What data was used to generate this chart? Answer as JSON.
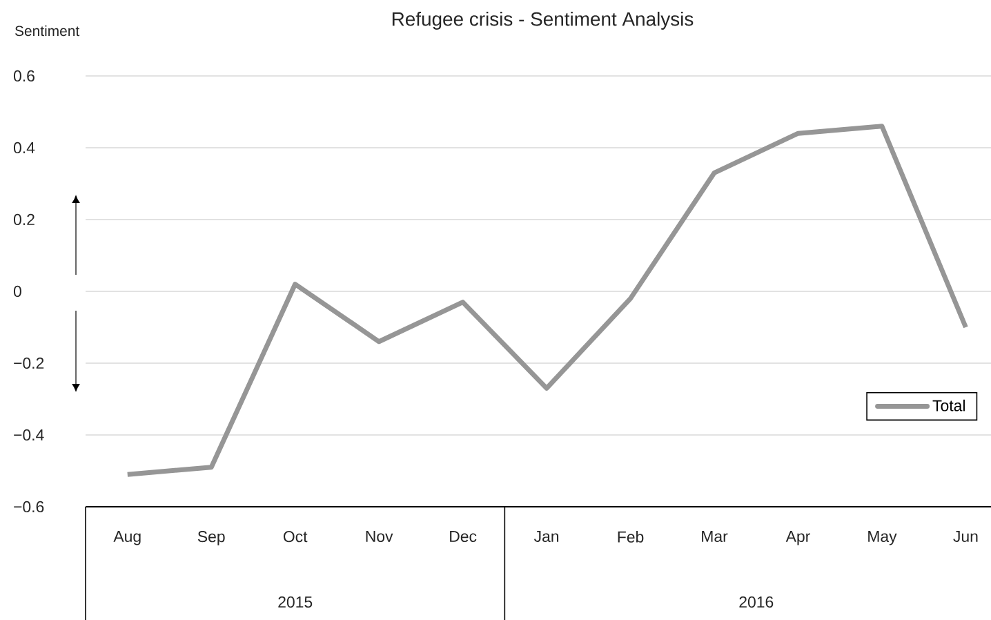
{
  "chart_data": {
    "type": "line",
    "title": "Refugee crisis - Sentiment Analysis",
    "ylabel": "Sentiment",
    "categories": [
      "Aug",
      "Sep",
      "Oct",
      "Nov",
      "Dec",
      "Jan",
      "Feb",
      "Mar",
      "Apr",
      "May",
      "Jun"
    ],
    "series": [
      {
        "name": "Total",
        "color": "#969696",
        "values": [
          -0.51,
          -0.49,
          0.02,
          -0.14,
          -0.03,
          -0.27,
          -0.02,
          0.33,
          0.44,
          0.46,
          -0.1
        ]
      }
    ],
    "ylim": [
      -0.6,
      0.6
    ],
    "yticks": [
      {
        "value": -0.6,
        "label": "−0.6"
      },
      {
        "value": -0.4,
        "label": "−0.4"
      },
      {
        "value": -0.2,
        "label": "−0.2"
      },
      0,
      0.2,
      0.4,
      0.6
    ],
    "annotations": [
      "2015",
      "2016"
    ],
    "grid": "y",
    "legend": "bottom right",
    "marker": "none",
    "line_style": "solid"
  }
}
